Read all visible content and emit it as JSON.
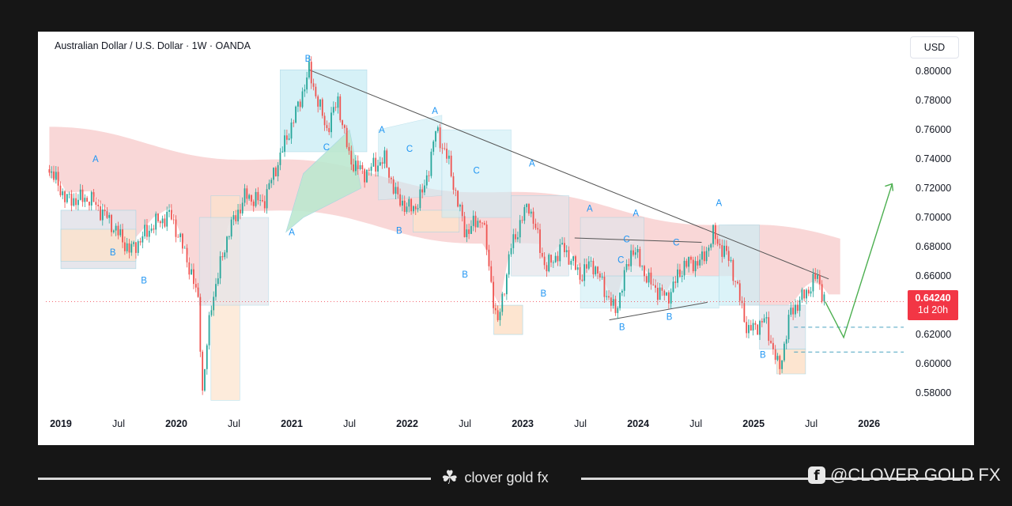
{
  "chart_data": {
    "type": "candlestick",
    "title": "Australian Dollar / U.S. Dollar · 1W · OANDA",
    "currency": "USD",
    "y_ticks": [
      "0.80000",
      "0.78000",
      "0.76000",
      "0.74000",
      "0.72000",
      "0.70000",
      "0.68000",
      "0.66000",
      "0.64000",
      "0.62000",
      "0.60000",
      "0.58000"
    ],
    "ylim": [
      0.573,
      0.8055
    ],
    "x_ticks": [
      {
        "label": "2019",
        "t": 2019.0,
        "bold": true
      },
      {
        "label": "Jul",
        "t": 2019.5,
        "bold": false
      },
      {
        "label": "2020",
        "t": 2020.0,
        "bold": true
      },
      {
        "label": "Jul",
        "t": 2020.5,
        "bold": false
      },
      {
        "label": "2021",
        "t": 2021.0,
        "bold": true
      },
      {
        "label": "Jul",
        "t": 2021.5,
        "bold": false
      },
      {
        "label": "2022",
        "t": 2022.0,
        "bold": true
      },
      {
        "label": "Jul",
        "t": 2022.5,
        "bold": false
      },
      {
        "label": "2023",
        "t": 2023.0,
        "bold": true
      },
      {
        "label": "Jul",
        "t": 2023.5,
        "bold": false
      },
      {
        "label": "2024",
        "t": 2024.0,
        "bold": true
      },
      {
        "label": "Jul",
        "t": 2024.5,
        "bold": false
      },
      {
        "label": "2025",
        "t": 2025.0,
        "bold": true
      },
      {
        "label": "Jul",
        "t": 2025.5,
        "bold": false
      },
      {
        "label": "2026",
        "t": 2026.0,
        "bold": true
      }
    ],
    "xlim": [
      2018.87,
      2026.3
    ],
    "last_price": {
      "value": "0.64240",
      "countdown": "1d 20h",
      "y": 0.6424
    },
    "price_path": [
      [
        2018.9,
        0.733
      ],
      [
        2019.05,
        0.712
      ],
      [
        2019.25,
        0.713
      ],
      [
        2019.4,
        0.7
      ],
      [
        2019.6,
        0.677
      ],
      [
        2019.8,
        0.695
      ],
      [
        2019.95,
        0.702
      ],
      [
        2020.1,
        0.67
      ],
      [
        2020.2,
        0.64
      ],
      [
        2020.22,
        0.575
      ],
      [
        2020.3,
        0.64
      ],
      [
        2020.45,
        0.69
      ],
      [
        2020.6,
        0.715
      ],
      [
        2020.75,
        0.71
      ],
      [
        2020.9,
        0.742
      ],
      [
        2021.05,
        0.775
      ],
      [
        2021.15,
        0.8
      ],
      [
        2021.3,
        0.76
      ],
      [
        2021.4,
        0.78
      ],
      [
        2021.5,
        0.74
      ],
      [
        2021.62,
        0.73
      ],
      [
        2021.8,
        0.74
      ],
      [
        2021.92,
        0.712
      ],
      [
        2022.05,
        0.705
      ],
      [
        2022.15,
        0.72
      ],
      [
        2022.25,
        0.76
      ],
      [
        2022.35,
        0.74
      ],
      [
        2022.5,
        0.69
      ],
      [
        2022.65,
        0.7
      ],
      [
        2022.78,
        0.625
      ],
      [
        2022.9,
        0.68
      ],
      [
        2023.05,
        0.71
      ],
      [
        2023.2,
        0.665
      ],
      [
        2023.35,
        0.68
      ],
      [
        2023.5,
        0.66
      ],
      [
        2023.6,
        0.67
      ],
      [
        2023.8,
        0.635
      ],
      [
        2023.95,
        0.68
      ],
      [
        2024.1,
        0.655
      ],
      [
        2024.25,
        0.645
      ],
      [
        2024.4,
        0.668
      ],
      [
        2024.55,
        0.67
      ],
      [
        2024.65,
        0.688
      ],
      [
        2024.8,
        0.67
      ],
      [
        2024.95,
        0.622
      ],
      [
        2025.1,
        0.63
      ],
      [
        2025.22,
        0.595
      ],
      [
        2025.32,
        0.635
      ],
      [
        2025.45,
        0.648
      ],
      [
        2025.55,
        0.66
      ],
      [
        2025.62,
        0.6424
      ]
    ],
    "forecast": {
      "points": [
        [
          2025.62,
          0.6424
        ],
        [
          2025.78,
          0.618
        ],
        [
          2026.2,
          0.723
        ]
      ],
      "color": "#4caf50"
    },
    "resistance_trendline": [
      [
        2021.15,
        0.801
      ],
      [
        2025.65,
        0.658
      ]
    ],
    "triangle_lines": [
      [
        [
          2023.45,
          0.686
        ],
        [
          2024.55,
          0.683
        ]
      ],
      [
        [
          2023.75,
          0.63
        ],
        [
          2024.6,
          0.642
        ]
      ]
    ],
    "support_dashes": [
      0.625,
      0.608
    ],
    "wave_labels": [
      {
        "text": "B",
        "t": 2021.14,
        "p": 0.8065
      },
      {
        "text": "A",
        "t": 2019.3,
        "p": 0.738
      },
      {
        "text": "B",
        "t": 2019.45,
        "p": 0.674
      },
      {
        "text": "B",
        "t": 2019.72,
        "p": 0.655
      },
      {
        "text": "A",
        "t": 2021.0,
        "p": 0.688
      },
      {
        "text": "C",
        "t": 2021.3,
        "p": 0.746
      },
      {
        "text": "A",
        "t": 2021.78,
        "p": 0.758
      },
      {
        "text": "B",
        "t": 2021.93,
        "p": 0.689
      },
      {
        "text": "C",
        "t": 2022.02,
        "p": 0.745
      },
      {
        "text": "A",
        "t": 2022.24,
        "p": 0.771
      },
      {
        "text": "B",
        "t": 2022.5,
        "p": 0.659
      },
      {
        "text": "C",
        "t": 2022.6,
        "p": 0.73
      },
      {
        "text": "A",
        "t": 2023.08,
        "p": 0.735
      },
      {
        "text": "B",
        "t": 2023.18,
        "p": 0.646
      },
      {
        "text": "A",
        "t": 2023.58,
        "p": 0.704
      },
      {
        "text": "B",
        "t": 2023.86,
        "p": 0.623
      },
      {
        "text": "C",
        "t": 2023.9,
        "p": 0.683
      },
      {
        "text": "C",
        "t": 2023.85,
        "p": 0.669
      },
      {
        "text": "A",
        "t": 2023.98,
        "p": 0.701
      },
      {
        "text": "B",
        "t": 2024.27,
        "p": 0.63
      },
      {
        "text": "C",
        "t": 2024.33,
        "p": 0.681
      },
      {
        "text": "A",
        "t": 2024.7,
        "p": 0.708
      },
      {
        "text": "B",
        "t": 2025.08,
        "p": 0.604
      }
    ],
    "colors": {
      "up": "#26a69a",
      "down": "#ef5350",
      "red_cloud": "#f7c9c9",
      "cyan_band": "#cdeef6",
      "green_band": "#bde8d0",
      "orange_band": "#fde3cc",
      "gray_band": "#e4e4ea"
    }
  },
  "footer": {
    "brand": "clover gold fx",
    "social": "@CLOVER GOLD FX",
    "fb_glyph": "f",
    "clover_glyph": "☘"
  }
}
